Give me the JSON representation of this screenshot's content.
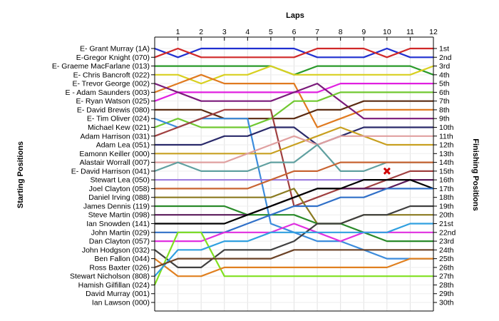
{
  "chart_data": {
    "type": "line",
    "title": "Laps",
    "ylabel_left": "Starting Positions",
    "ylabel_right": "Finishing Positions",
    "x": [
      0,
      1,
      2,
      3,
      4,
      5,
      6,
      7,
      8,
      9,
      10,
      11,
      12
    ],
    "x_ticks": [
      "1",
      "2",
      "3",
      "4",
      "5",
      "6",
      "7",
      "8",
      "9",
      "10",
      "11",
      "12"
    ],
    "xlim": [
      0,
      12
    ],
    "ylim": [
      1,
      30
    ],
    "y_inverted": true,
    "grid": true,
    "legend": "none",
    "start_labels": [
      "E- Grant Murray (1A)",
      "E-Gregor Knight (070)",
      "E- Graeme MacFarlane (013)",
      "E- Chris Bancroft (022)",
      "E- Trevor George (002)",
      "E - Adam Saunders (003)",
      "E- Ryan Watson (025)",
      "E- David Brewis (080)",
      "E- Tim Oliver (024)",
      "Michael Kew (021)",
      "Adam Harrison (031)",
      "Adam Lea (051)",
      "Eamonn Keiller (000)",
      "Alastair Worrall (007)",
      "E- David Harrison (041)",
      "Stewart Lea (050)",
      "Joel Clayton (058)",
      "Daniel Irving (088)",
      "James Dennis (119)",
      "Steve Martin (098)",
      "Ian Snowden (141)",
      "John Martin (029)",
      "Dan Clayton (057)",
      "John Hodgson (032)",
      "Ben Fallon (044)",
      "Ross Baxter (026)",
      "Stewart Nicholson (808)",
      "Hamish Gilfillan (024)",
      "David Murray (001)",
      "Ian Lawson (000)"
    ],
    "finish_labels": [
      "1st",
      "2nd",
      "3rd",
      "4th",
      "5th",
      "6th",
      "7th",
      "8th",
      "9th",
      "10th",
      "11th",
      "12th",
      "13th",
      "14th",
      "15th",
      "16th",
      "17th",
      "18th",
      "19th",
      "20th",
      "21st",
      "22nd",
      "23rd",
      "24th",
      "25th",
      "26th",
      "27th",
      "28th",
      "29th",
      "30th"
    ],
    "series": [
      {
        "color": "#1f2fd0",
        "values": [
          1,
          2,
          1,
          1,
          1,
          1,
          1,
          2,
          2,
          2,
          1,
          2,
          2
        ]
      },
      {
        "color": "#d02828",
        "values": [
          2,
          1,
          2,
          2,
          2,
          2,
          2,
          1,
          1,
          1,
          2,
          1,
          1
        ]
      },
      {
        "color": "#2a9a2a",
        "values": [
          3,
          3,
          3,
          3,
          3,
          3,
          4,
          3,
          3,
          3,
          3,
          3,
          4
        ]
      },
      {
        "color": "#d8d020",
        "values": [
          4,
          4,
          5,
          4,
          4,
          3,
          4,
          4,
          4,
          4,
          4,
          4,
          3
        ]
      },
      {
        "color": "#e07a20",
        "values": [
          6,
          5,
          4,
          5,
          5,
          5,
          5,
          10,
          9,
          8,
          8,
          8,
          8
        ]
      },
      {
        "color": "#e020e0",
        "values": [
          7,
          6,
          6,
          6,
          6,
          6,
          6,
          6,
          5,
          5,
          5,
          5,
          5
        ]
      },
      {
        "color": "#7a1a7a",
        "values": [
          5,
          6,
          7,
          7,
          7,
          7,
          6,
          5,
          7,
          9,
          9,
          9,
          9
        ]
      },
      {
        "color": "#5a2a10",
        "values": [
          8,
          8,
          8,
          9,
          9,
          9,
          9,
          8,
          8,
          7,
          7,
          7,
          7
        ]
      },
      {
        "color": "#70c830",
        "values": [
          10,
          9,
          10,
          10,
          10,
          9,
          7,
          7,
          6,
          6,
          6,
          6,
          6
        ]
      },
      {
        "color": "#3c8cdc",
        "values": [
          9,
          10,
          9,
          9,
          9,
          21,
          22,
          23,
          23,
          24,
          25,
          25,
          25
        ]
      },
      {
        "color": "#a04040",
        "values": [
          11,
          10,
          9,
          8,
          8,
          8,
          19,
          18,
          17,
          17,
          16,
          15,
          15
        ]
      },
      {
        "color": "#2a2a6a",
        "values": [
          12,
          12,
          12,
          11,
          11,
          10,
          10,
          12,
          11,
          10,
          10,
          10,
          10
        ]
      },
      {
        "color": "#c8a020",
        "values": [
          13,
          13,
          13,
          13,
          13,
          13,
          12,
          11,
          10,
          11,
          12,
          12,
          12
        ]
      },
      {
        "color": "#e0a0a0",
        "values": [
          14,
          14,
          14,
          14,
          13,
          12,
          11,
          12,
          11,
          11,
          11,
          11,
          11
        ]
      },
      {
        "color": "#60a0a0",
        "values": [
          15,
          14,
          15,
          15,
          15,
          14,
          14,
          12,
          15,
          15,
          14,
          14,
          14
        ]
      },
      {
        "color": "#a080e0",
        "values": [
          16,
          16,
          16,
          16,
          16,
          16,
          16,
          16,
          16,
          16,
          16,
          16,
          16
        ]
      },
      {
        "color": "#c86432",
        "values": [
          17,
          17,
          17,
          17,
          17,
          16,
          15,
          15,
          14,
          14,
          14,
          14,
          14
        ]
      },
      {
        "color": "#8a7a20",
        "values": [
          18,
          18,
          18,
          18,
          18,
          18,
          17,
          21,
          21,
          20,
          20,
          20,
          20
        ]
      },
      {
        "color": "#2a8a2a",
        "values": [
          19,
          19,
          19,
          19,
          20,
          20,
          20,
          21,
          21,
          22,
          23,
          23,
          23
        ]
      },
      {
        "color": "#5a1a5a",
        "values": [
          20,
          20,
          20,
          20,
          20,
          19,
          18,
          17,
          17,
          17,
          17,
          16,
          16
        ]
      },
      {
        "color": "#000000",
        "values": [
          21,
          21,
          21,
          21,
          20,
          19,
          18,
          17,
          17,
          16,
          16,
          16,
          17
        ]
      },
      {
        "color": "#3070c8",
        "values": [
          22,
          22,
          22,
          22,
          21,
          20,
          19,
          19,
          18,
          18,
          17,
          17,
          17
        ]
      },
      {
        "color": "#e030e0",
        "values": [
          23,
          23,
          23,
          22,
          22,
          22,
          21,
          22,
          23,
          22,
          22,
          22,
          22
        ]
      },
      {
        "color": "#404040",
        "values": [
          24,
          26,
          26,
          24,
          24,
          24,
          23,
          21,
          21,
          20,
          20,
          19,
          19
        ]
      },
      {
        "color": "#80e020",
        "values": [
          28,
          22,
          22,
          27,
          27,
          27,
          27,
          27,
          27,
          27,
          27,
          27,
          27
        ]
      },
      {
        "color": "#e08020",
        "values": [
          25,
          27,
          27,
          26,
          26,
          26,
          26,
          26,
          26,
          26,
          26,
          25,
          25
        ]
      },
      {
        "color": "#30a0e0",
        "values": [
          27,
          24,
          24,
          23,
          23,
          22,
          22,
          22,
          22,
          22,
          22,
          21,
          21
        ]
      },
      {
        "color": "#6b4226",
        "values": [
          26,
          25,
          25,
          25,
          25,
          25,
          24,
          24,
          24,
          24,
          24,
          24,
          24
        ]
      }
    ],
    "annotations": [
      {
        "type": "dnf-marker",
        "color": "#d00000",
        "x": 10,
        "y": 15
      }
    ]
  }
}
